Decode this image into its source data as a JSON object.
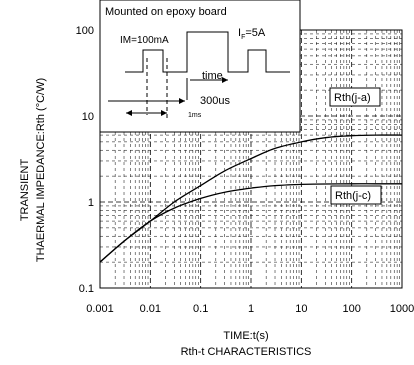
{
  "chart_data": {
    "type": "line",
    "x_scale": "log",
    "y_scale": "log",
    "xlim": [
      0.001,
      1000
    ],
    "ylim": [
      0.1,
      100
    ],
    "grid": true,
    "xlabel": "TIME:t(s)",
    "ylabel_line1": "TRANSIENT",
    "ylabel_line2": "THAERMAL IMPEDANCE:Rth (°C/W)",
    "caption": "Rth-t CHARACTERISTICS",
    "x_ticks": [
      "0.001",
      "0.01",
      "0.1",
      "1",
      "10",
      "100",
      "1000"
    ],
    "y_ticks": [
      "0.1",
      "1",
      "10",
      "100"
    ],
    "series": [
      {
        "name": "Rth(j-a)",
        "x": [
          0.001,
          0.003,
          0.01,
          0.03,
          0.1,
          0.3,
          1,
          3,
          10,
          30,
          100,
          300,
          1000
        ],
        "y": [
          0.2,
          0.35,
          0.6,
          1.0,
          1.55,
          2.3,
          3.2,
          4.2,
          5.0,
          5.6,
          5.9,
          6.0,
          6.0
        ]
      },
      {
        "name": "Rth(j-c)",
        "x": [
          0.001,
          0.003,
          0.01,
          0.03,
          0.1,
          0.3,
          1,
          3,
          10,
          30,
          100,
          300,
          1000
        ],
        "y": [
          0.2,
          0.35,
          0.6,
          0.85,
          1.1,
          1.3,
          1.45,
          1.55,
          1.6,
          1.62,
          1.63,
          1.63,
          1.63
        ]
      }
    ],
    "inset": {
      "title": "Mounted on epoxy board",
      "im_label": "IM=100mA",
      "if_label": "I",
      "if_sub": "F",
      "if_value": "=5A",
      "time_label": "time",
      "pulse_label": "300us",
      "period_label": "1ms"
    }
  }
}
